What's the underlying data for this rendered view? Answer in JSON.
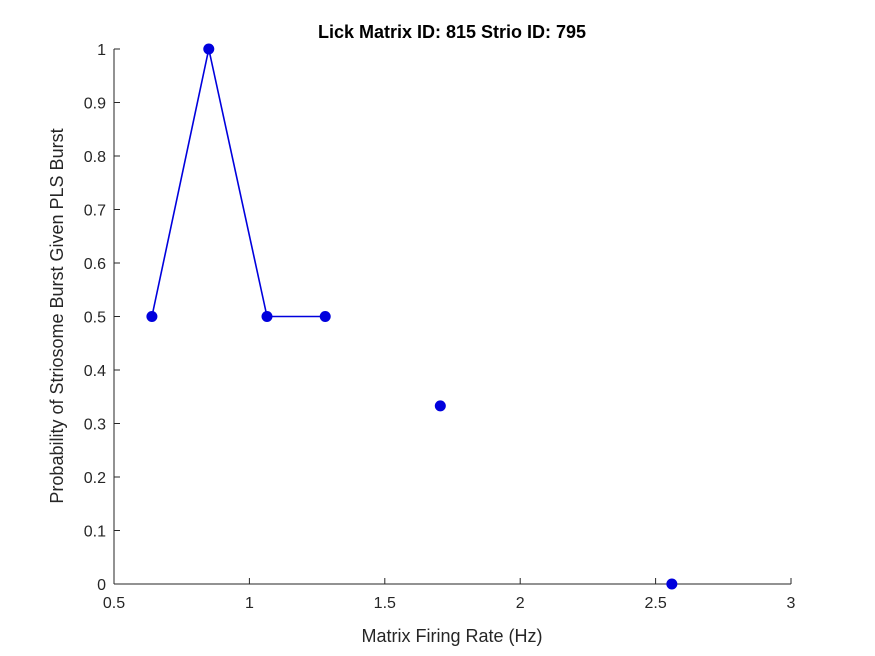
{
  "chart_data": {
    "type": "line",
    "title": "Lick Matrix ID: 815 Strio ID: 795",
    "xlabel": "Matrix Firing Rate (Hz)",
    "ylabel": "Probability of Striosome Burst Given PLS Burst",
    "xlim": [
      0.5,
      3
    ],
    "ylim": [
      0,
      1
    ],
    "xticks": [
      0.5,
      1,
      1.5,
      2,
      2.5,
      3
    ],
    "xtick_labels": [
      "0.5",
      "1",
      "1.5",
      "2",
      "2.5",
      "3"
    ],
    "yticks": [
      0,
      0.1,
      0.2,
      0.3,
      0.4,
      0.5,
      0.6,
      0.7,
      0.8,
      0.9,
      1
    ],
    "ytick_labels": [
      "0",
      "0.1",
      "0.2",
      "0.3",
      "0.4",
      "0.5",
      "0.6",
      "0.7",
      "0.8",
      "0.9",
      "1"
    ],
    "grid": false,
    "legend": "none",
    "color": "#0000dd",
    "series": [
      {
        "x": [
          0.64,
          0.85,
          1.065,
          1.28,
          1.705,
          2.56
        ],
        "y": [
          0.5,
          1.0,
          0.5,
          0.5,
          0.333,
          0.0
        ],
        "connected": [
          true,
          true,
          true,
          true,
          false,
          false
        ]
      }
    ]
  }
}
